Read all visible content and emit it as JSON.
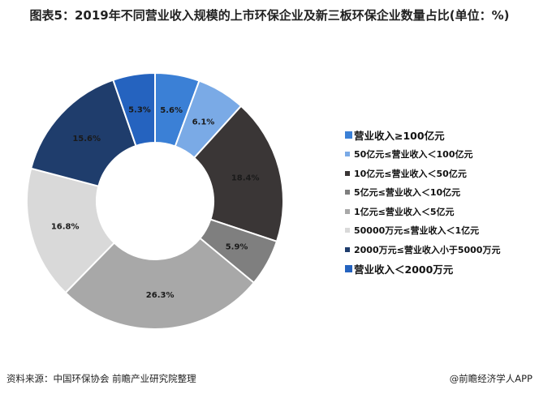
{
  "title": "图表5：2019年不同营业收入规模的上市环保企业及新三板环保企业数量占比(单位：%)",
  "chart_data": {
    "type": "pie",
    "donut": true,
    "title": "图表5：2019年不同营业收入规模的上市环保企业及新三板环保企业数量占比(单位：%)",
    "legend_position": "right",
    "categories": [
      "营业收入≥100亿元",
      "50亿元≤营业收入＜100亿元",
      "10亿元≤营业收入＜50亿元",
      "5亿元≤营业收入＜10亿元",
      "1亿元≤营业收入＜5亿元",
      "50000万元≤营业收入＜1亿元",
      "2000万元≤营业收入小于5000万元",
      "营业收入＜2000万元"
    ],
    "values": [
      5.6,
      6.1,
      18.4,
      5.9,
      26.3,
      16.8,
      15.6,
      5.3
    ],
    "labels": [
      "5.6%",
      "6.1%",
      "18.4%",
      "5.9%",
      "26.3%",
      "16.8%",
      "15.6%",
      "5.3%"
    ],
    "colors": [
      "#3b80d6",
      "#7aaae6",
      "#3a3636",
      "#7f7f7f",
      "#a8a8a8",
      "#d9d9d9",
      "#1f3d6c",
      "#2563bf"
    ]
  },
  "footer": {
    "source": "资料来源：中国环保协会 前瞻产业研究院整理",
    "brand": "@前瞻经济学人APP"
  }
}
